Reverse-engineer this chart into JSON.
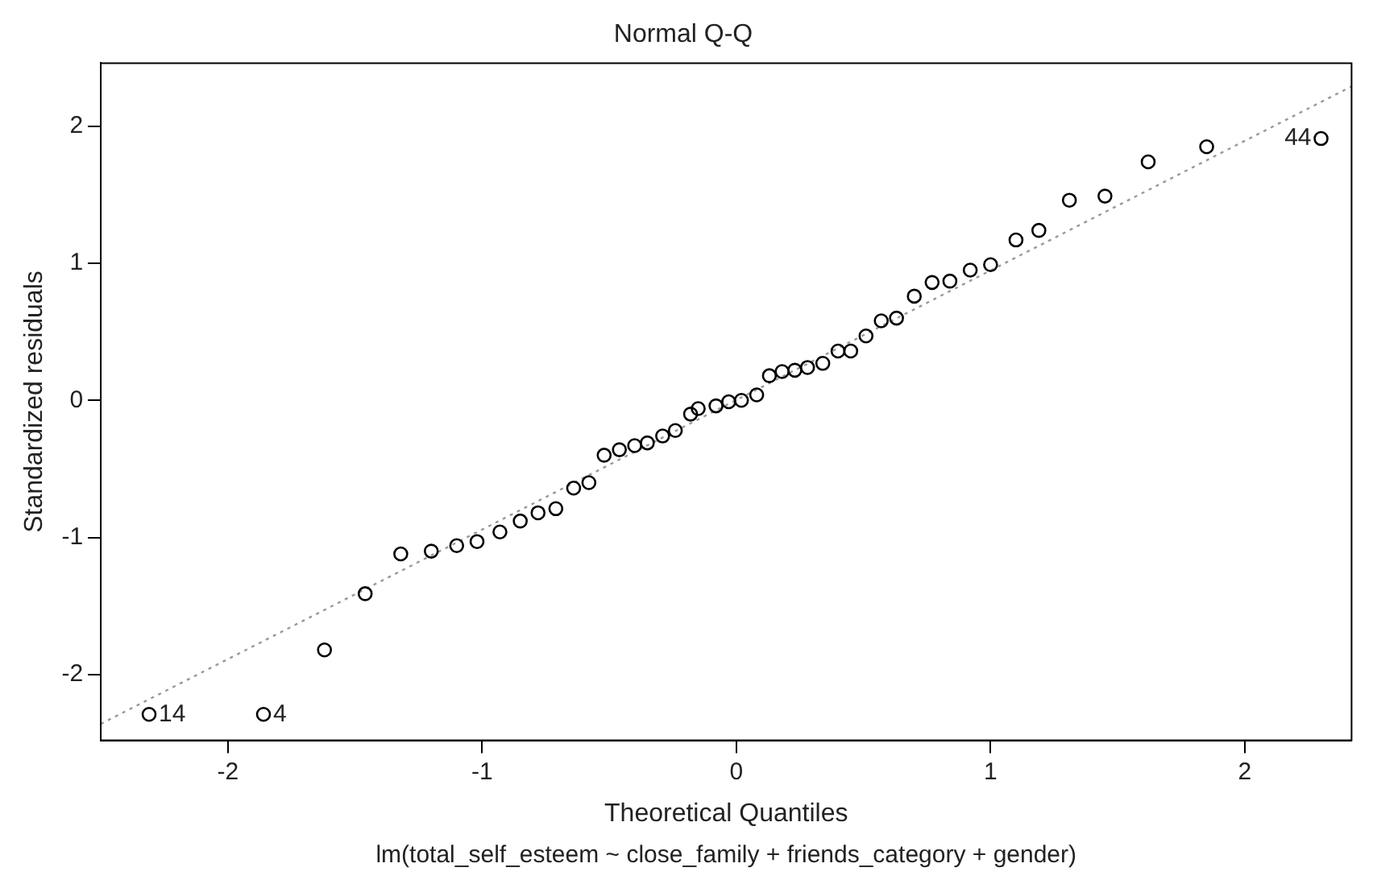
{
  "chart_data": {
    "type": "scatter",
    "title": "Normal Q-Q",
    "xlabel": "Theoretical Quantiles",
    "ylabel": "Standardized residuals",
    "annotations": [
      "lm(total_self_esteem ~ close_family + friends_category + gender)",
      {
        "text": "14",
        "x": -2.31,
        "y": -2.29
      },
      {
        "text": "4",
        "x": -1.86,
        "y": -2.29
      },
      {
        "text": "44",
        "x": 2.3,
        "y": 1.91
      }
    ],
    "xlim": [
      -2.5,
      2.42
    ],
    "ylim": [
      -2.48,
      2.46
    ],
    "xticks": [
      -2,
      -1,
      0,
      1,
      2
    ],
    "yticks": [
      -2,
      -1,
      0,
      1,
      2
    ],
    "grid": false,
    "legend": false,
    "series": [
      {
        "type": "scatter",
        "color": "#000000",
        "marker": "circle",
        "x": [
          -2.31,
          -1.86,
          -1.62,
          -1.46,
          -1.32,
          -1.2,
          -1.1,
          -1.02,
          -0.93,
          -0.85,
          -0.78,
          -0.71,
          -0.64,
          -0.58,
          -0.52,
          -0.46,
          -0.4,
          -0.35,
          -0.29,
          -0.24,
          -0.18,
          -0.15,
          -0.08,
          -0.03,
          0.02,
          0.08,
          0.13,
          0.18,
          0.23,
          0.28,
          0.34,
          0.4,
          0.45,
          0.51,
          0.57,
          0.63,
          0.7,
          0.77,
          0.84,
          0.92,
          1.0,
          1.1,
          1.19,
          1.31,
          1.45,
          1.62,
          1.85,
          2.3
        ],
        "values": [
          -2.29,
          -2.29,
          -1.82,
          -1.41,
          -1.12,
          -1.1,
          -1.06,
          -1.03,
          -0.96,
          -0.88,
          -0.82,
          -0.79,
          -0.64,
          -0.6,
          -0.4,
          -0.36,
          -0.33,
          -0.31,
          -0.26,
          -0.22,
          -0.1,
          -0.06,
          -0.04,
          -0.01,
          0.0,
          0.04,
          0.18,
          0.21,
          0.22,
          0.24,
          0.27,
          0.36,
          0.36,
          0.47,
          0.58,
          0.6,
          0.76,
          0.86,
          0.87,
          0.95,
          0.99,
          1.17,
          1.24,
          1.46,
          1.49,
          1.74,
          1.85,
          1.91
        ]
      },
      {
        "type": "line",
        "color": "#999999",
        "line_style": "dotted",
        "marker": "none",
        "x": [
          -2.5,
          2.42
        ],
        "values": [
          -2.36,
          2.29
        ]
      }
    ]
  }
}
